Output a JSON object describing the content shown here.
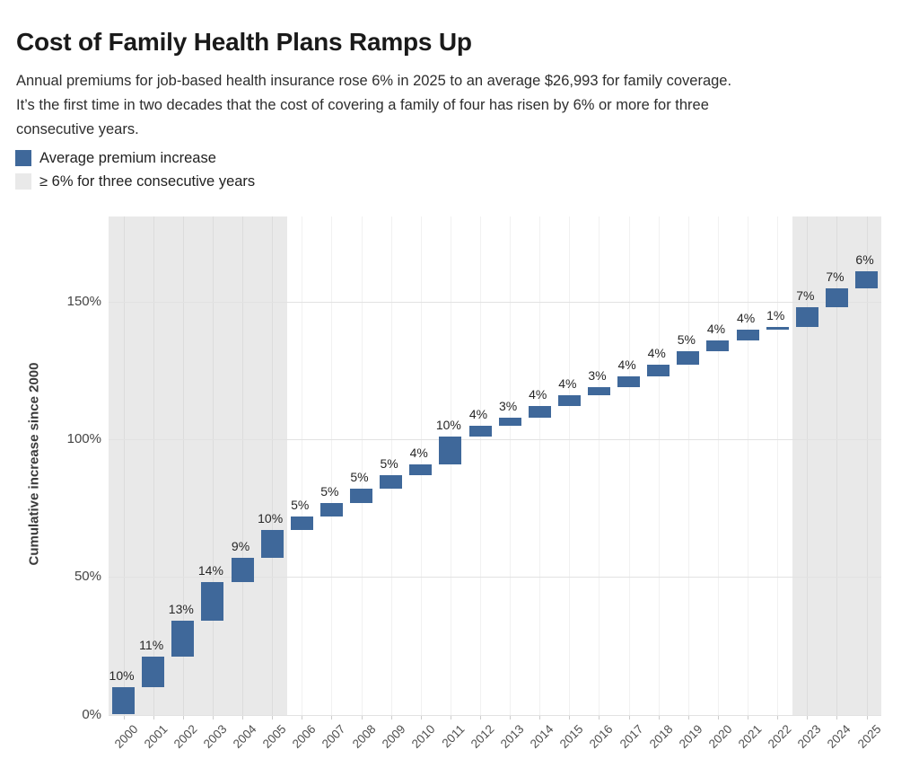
{
  "header": {
    "title": "Cost of Family Health Plans Ramps Up",
    "subtitle_lines": [
      "Annual premiums for job-based health insurance rose 6% in 2025 to an average $26,993 for family coverage.",
      "It’s the first time in two decades that the cost of covering a family of four has risen by 6% or more for three",
      "consecutive years."
    ]
  },
  "legend": {
    "items": [
      {
        "label": "Average premium increase",
        "color": "#3f689a"
      },
      {
        "label": "≥ 6% for three consecutive years",
        "color": "#e9e9e9"
      }
    ]
  },
  "chart_data": {
    "type": "bar",
    "subtype": "waterfall",
    "title": "Cost of Family Health Plans Ramps Up",
    "xlabel": "",
    "ylabel": "Cumulative increase since 2000",
    "categories": [
      "2000",
      "2001",
      "2002",
      "2003",
      "2004",
      "2005",
      "2006",
      "2007",
      "2008",
      "2009",
      "2010",
      "2011",
      "2012",
      "2013",
      "2014",
      "2015",
      "2016",
      "2017",
      "2018",
      "2019",
      "2020",
      "2021",
      "2022",
      "2023",
      "2024",
      "2025"
    ],
    "annual_increase_pct": [
      10,
      11,
      13,
      14,
      9,
      10,
      5,
      5,
      5,
      5,
      4,
      10,
      4,
      3,
      4,
      4,
      3,
      4,
      4,
      5,
      4,
      4,
      1,
      7,
      7,
      6
    ],
    "bar_labels": [
      "10%",
      "11%",
      "13%",
      "14%",
      "9%",
      "10%",
      "5%",
      "5%",
      "5%",
      "5%",
      "4%",
      "10%",
      "4%",
      "3%",
      "4%",
      "4%",
      "3%",
      "4%",
      "4%",
      "5%",
      "4%",
      "4%",
      "1%",
      "7%",
      "7%",
      "6%"
    ],
    "cumulative_start_pct": [
      0,
      10,
      21,
      34,
      48,
      57,
      67,
      72,
      77,
      82,
      87,
      91,
      101,
      105,
      108,
      112,
      116,
      119,
      123,
      127,
      132,
      136,
      140,
      141,
      148,
      155
    ],
    "cumulative_end_pct": [
      10,
      21,
      34,
      48,
      57,
      67,
      72,
      77,
      82,
      87,
      91,
      101,
      105,
      108,
      112,
      116,
      119,
      123,
      127,
      132,
      136,
      140,
      141,
      148,
      155,
      161
    ],
    "y_ticks": [
      {
        "value": 0,
        "label": "0%"
      },
      {
        "value": 50,
        "label": "50%"
      },
      {
        "value": 100,
        "label": "100%"
      },
      {
        "value": 150,
        "label": "150%"
      }
    ],
    "ylim": [
      0,
      181
    ],
    "grid": true,
    "legend_position": "top-left",
    "highlight_bands": [
      {
        "from_year": "2000",
        "to_year": "2005"
      },
      {
        "from_year": "2023",
        "to_year": "2025"
      }
    ],
    "bar_color": "#3f689a",
    "band_color": "#e9e9e9"
  }
}
